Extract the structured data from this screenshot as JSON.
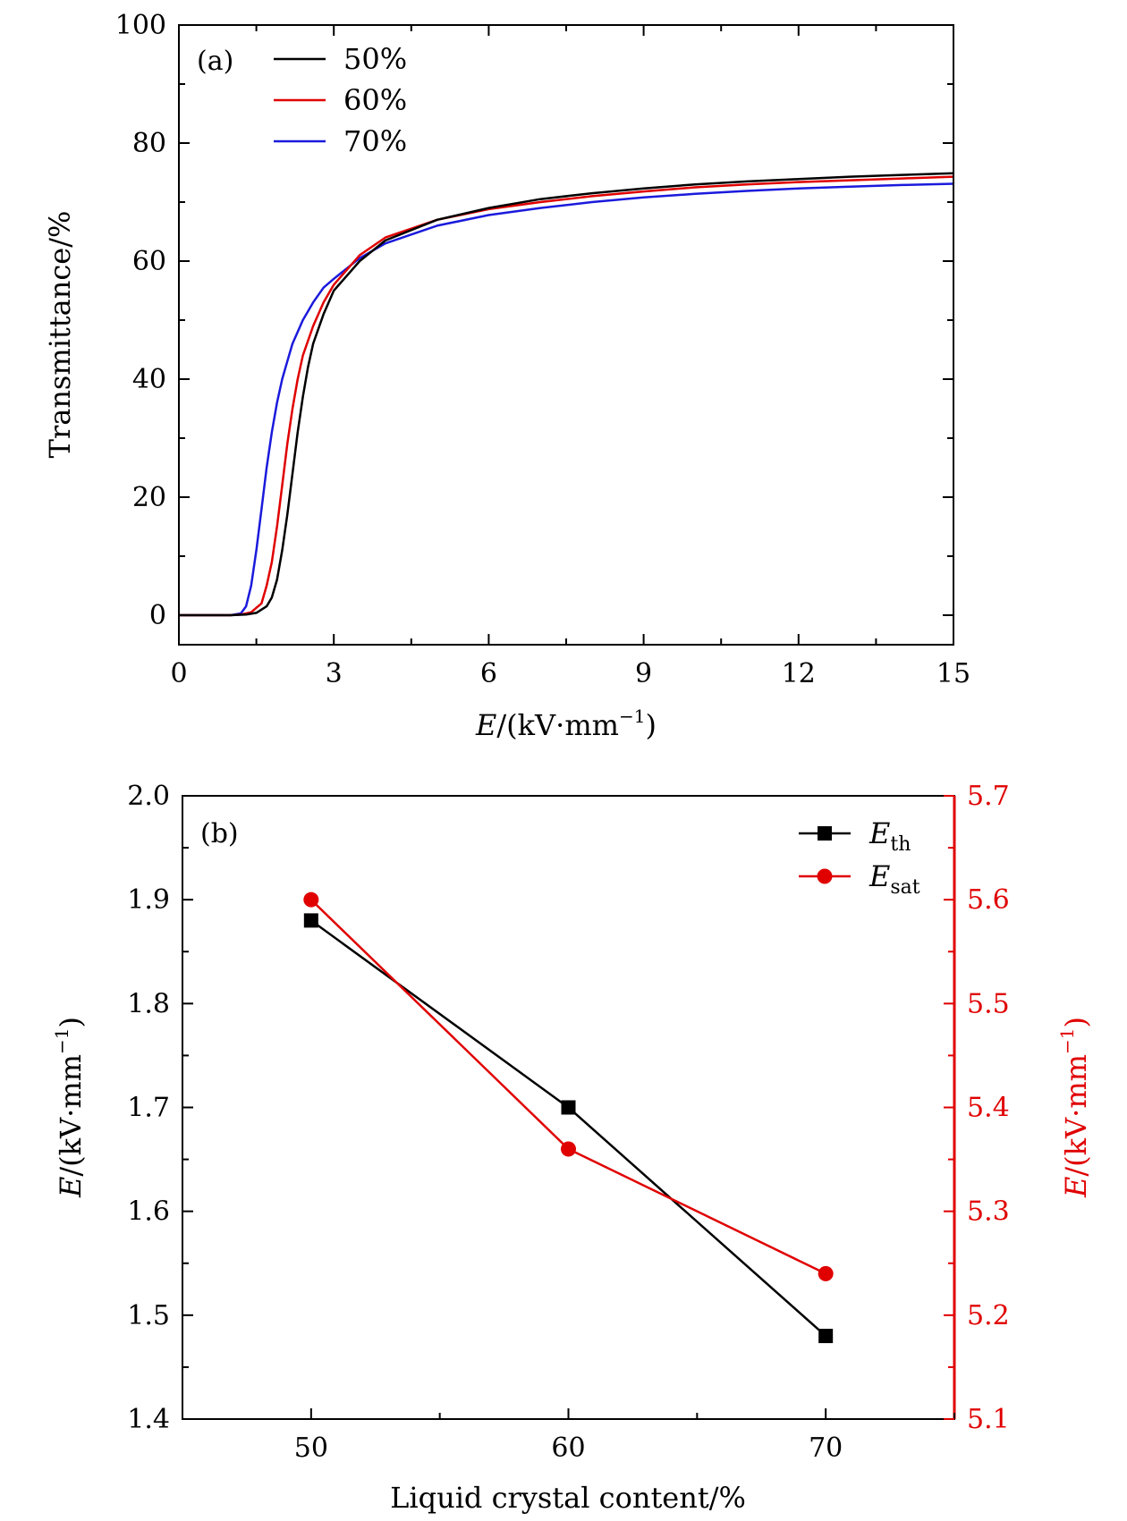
{
  "chart_data": [
    {
      "type": "line",
      "panel_label": "(a)",
      "xlabel_italic": "E",
      "xlabel_rest": "/(kV·mm",
      "xlabel_sup": "−1",
      "xlabel_close": ")",
      "ylabel": "Transmittance/%",
      "xlim": [
        0,
        15
      ],
      "ylim": [
        -5,
        100
      ],
      "x_ticks": [
        "0",
        "3",
        "6",
        "9",
        "12",
        "15"
      ],
      "y_ticks": [
        "0",
        "20",
        "40",
        "60",
        "80",
        "100"
      ],
      "legend_position": "top-left",
      "series": [
        {
          "name": "50%",
          "color": "#000000",
          "x": [
            0,
            0.5,
            1.0,
            1.3,
            1.5,
            1.7,
            1.8,
            1.9,
            2.0,
            2.1,
            2.2,
            2.3,
            2.4,
            2.5,
            2.6,
            2.8,
            3.0,
            3.5,
            4.0,
            5.0,
            6.0,
            7.0,
            8.0,
            9.0,
            10.0,
            11.0,
            12.0,
            13.0,
            14.0,
            15.0
          ],
          "y": [
            0,
            0,
            0,
            0.1,
            0.4,
            1.5,
            3.0,
            6.0,
            11.0,
            17.0,
            24.0,
            31.0,
            37.0,
            42.0,
            46.0,
            51.0,
            55.0,
            60.0,
            63.5,
            67.0,
            69.0,
            70.5,
            71.5,
            72.3,
            73.0,
            73.5,
            73.9,
            74.3,
            74.6,
            74.9
          ]
        },
        {
          "name": "60%",
          "color": "#e00000",
          "x": [
            0,
            0.5,
            1.0,
            1.2,
            1.4,
            1.6,
            1.7,
            1.8,
            1.9,
            2.0,
            2.1,
            2.2,
            2.3,
            2.4,
            2.6,
            2.8,
            3.0,
            3.5,
            4.0,
            5.0,
            6.0,
            7.0,
            8.0,
            9.0,
            10.0,
            11.0,
            12.0,
            13.0,
            14.0,
            15.0
          ],
          "y": [
            0,
            0,
            0,
            0.1,
            0.5,
            2.0,
            5.0,
            9.0,
            15.0,
            22.0,
            29.0,
            35.0,
            40.0,
            44.0,
            49.0,
            53.0,
            56.0,
            61.0,
            64.0,
            67.0,
            68.8,
            70.0,
            71.0,
            71.8,
            72.5,
            73.0,
            73.4,
            73.7,
            74.0,
            74.3
          ]
        },
        {
          "name": "70%",
          "color": "#1a1adc",
          "x": [
            0,
            0.5,
            1.0,
            1.2,
            1.3,
            1.4,
            1.5,
            1.6,
            1.7,
            1.8,
            1.9,
            2.0,
            2.1,
            2.2,
            2.4,
            2.6,
            2.8,
            3.0,
            3.5,
            4.0,
            5.0,
            6.0,
            7.0,
            8.0,
            9.0,
            10.0,
            11.0,
            12.0,
            13.0,
            14.0,
            15.0
          ],
          "y": [
            0,
            0,
            0,
            0.3,
            1.5,
            5.0,
            11.0,
            18.0,
            25.0,
            31.0,
            36.0,
            40.0,
            43.0,
            46.0,
            50.0,
            53.0,
            55.5,
            57.0,
            60.5,
            63.0,
            66.0,
            67.8,
            69.0,
            70.0,
            70.8,
            71.4,
            71.9,
            72.3,
            72.6,
            72.9,
            73.1
          ]
        }
      ]
    },
    {
      "type": "line",
      "panel_label": "(b)",
      "xlabel": "Liquid crystal content/%",
      "ylabel_left_italic": "E",
      "ylabel_left_rest": "/(kV·mm",
      "ylabel_left_sup": "−1",
      "ylabel_left_close": ")",
      "ylabel_right_italic": "E",
      "ylabel_right_rest": "/(kV·mm",
      "ylabel_right_sup": "−1",
      "ylabel_right_close": ")",
      "xlim": [
        45,
        75
      ],
      "ylim_left": [
        1.4,
        2.0
      ],
      "ylim_right": [
        5.1,
        5.7
      ],
      "x_ticks": [
        "50",
        "60",
        "70"
      ],
      "y_ticks_left": [
        "1.4",
        "1.5",
        "1.6",
        "1.7",
        "1.8",
        "1.9",
        "2.0"
      ],
      "y_ticks_right": [
        "5.1",
        "5.2",
        "5.3",
        "5.4",
        "5.5",
        "5.6",
        "5.7"
      ],
      "legend_position": "top-right",
      "series": [
        {
          "name_italic": "E",
          "name_sub": "th",
          "axis": "left",
          "marker": "square",
          "color": "#000000",
          "x": [
            50,
            60,
            70
          ],
          "y": [
            1.88,
            1.7,
            1.48
          ]
        },
        {
          "name_italic": "E",
          "name_sub": "sat",
          "axis": "right",
          "marker": "circle",
          "color": "#e00000",
          "x": [
            50,
            60,
            70
          ],
          "y": [
            5.6,
            5.36,
            5.24
          ]
        }
      ]
    }
  ]
}
